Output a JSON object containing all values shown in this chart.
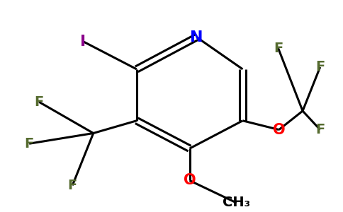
{
  "background_color": "#ffffff",
  "atom_colors": {
    "N": "#0000ff",
    "I": "#8b008b",
    "O": "#ff0000",
    "F": "#556b2f",
    "C": "#000000"
  },
  "bond_color": "#000000",
  "bond_width": 2.2,
  "figsize": [
    4.84,
    3.0
  ],
  "dpi": 100
}
